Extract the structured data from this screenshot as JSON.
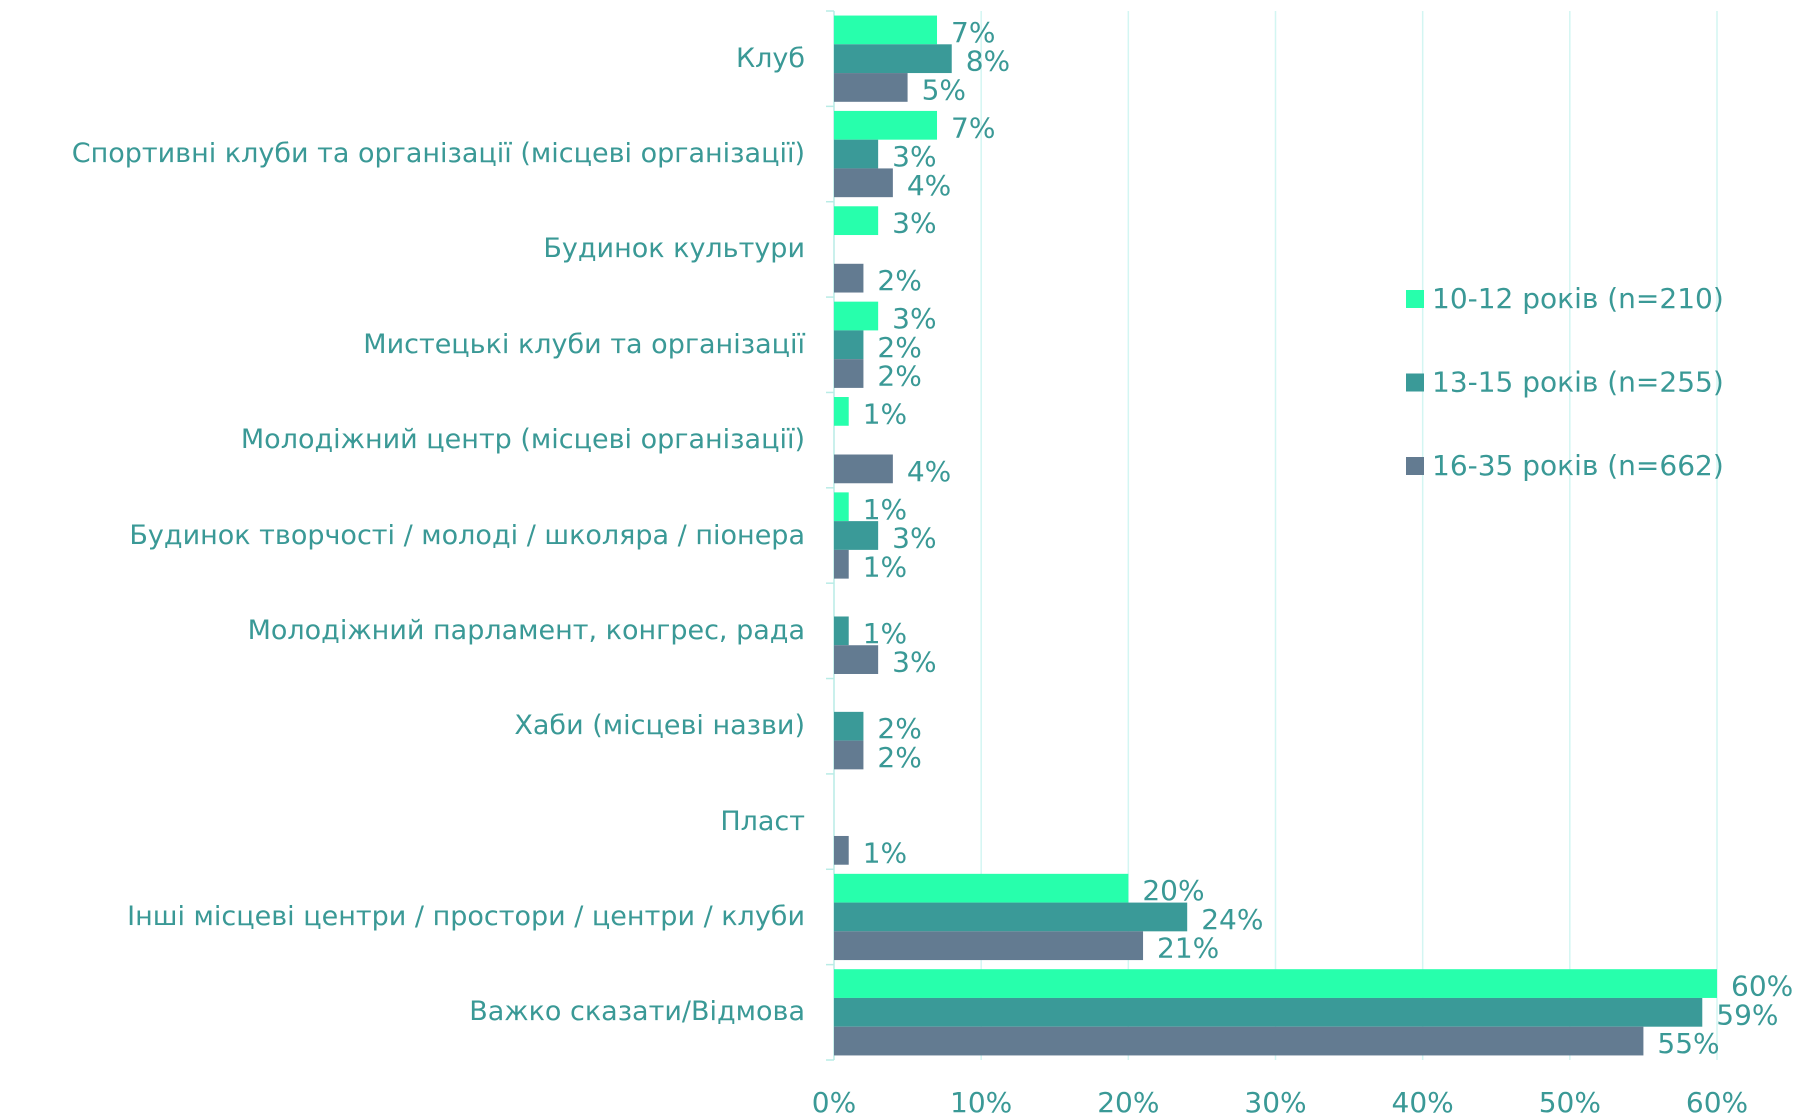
{
  "chart_data": {
    "type": "bar",
    "orientation": "horizontal",
    "categories": [
      "Клуб",
      "Спортивні клуби та організації (місцеві організації)",
      "Будинок культури",
      "Мистецькі клуби та організації",
      "Молодіжний центр (місцеві організації)",
      "Будинок творчості / молоді / школяра / піонера",
      "Молодіжний парламент, конгрес, рада",
      "Хаби (місцеві назви)",
      "Пласт",
      "Інші місцеві центри / простори / центри / клуби",
      "Важко сказати/Відмова"
    ],
    "series": [
      {
        "name": "10-12 років (n=210)",
        "color": "#27ffac",
        "values": [
          7,
          7,
          3,
          3,
          1,
          1,
          null,
          null,
          null,
          20,
          60
        ],
        "value_labels": [
          "7%",
          "7%",
          "3%",
          "3%",
          "1%",
          "1%",
          null,
          null,
          null,
          "20%",
          "60%"
        ]
      },
      {
        "name": "13-15 років (n=255)",
        "color": "#3a9a98",
        "values": [
          8,
          3,
          null,
          2,
          null,
          3,
          1,
          2,
          null,
          24,
          59
        ],
        "value_labels": [
          "8%",
          "3%",
          null,
          "2%",
          null,
          "3%",
          "1%",
          "2%",
          null,
          "24%",
          "59%"
        ]
      },
      {
        "name": "16-35 років (n=662)",
        "color": "#637b91",
        "values": [
          5,
          4,
          2,
          2,
          4,
          1,
          3,
          2,
          1,
          21,
          55
        ],
        "value_labels": [
          "5%",
          "4%",
          "2%",
          "2%",
          "4%",
          "1%",
          "3%",
          "2%",
          "1%",
          "21%",
          "55%"
        ]
      }
    ],
    "xlim": [
      0,
      60
    ],
    "xticks": [
      {
        "value": 0,
        "label": "0%"
      },
      {
        "value": 10,
        "label": "10%"
      },
      {
        "value": 20,
        "label": "20%"
      },
      {
        "value": 30,
        "label": "30%"
      },
      {
        "value": 40,
        "label": "40%"
      },
      {
        "value": 50,
        "label": "50%"
      },
      {
        "value": 60,
        "label": "60%"
      }
    ],
    "grid": true,
    "legend": "right"
  }
}
